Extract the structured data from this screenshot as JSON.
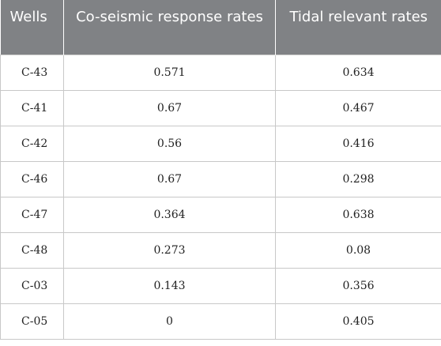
{
  "table": {
    "headers": [
      "Wells",
      "Co-seismic response rates",
      "Tidal relevant rates"
    ],
    "rows": [
      {
        "well": "C-43",
        "coseismic": "0.571",
        "tidal": "0.634"
      },
      {
        "well": "C-41",
        "coseismic": "0.67",
        "tidal": "0.467"
      },
      {
        "well": "C-42",
        "coseismic": "0.56",
        "tidal": "0.416"
      },
      {
        "well": "C-46",
        "coseismic": "0.67",
        "tidal": "0.298"
      },
      {
        "well": "C-47",
        "coseismic": "0.364",
        "tidal": "0.638"
      },
      {
        "well": "C-48",
        "coseismic": "0.273",
        "tidal": "0.08"
      },
      {
        "well": "C-03",
        "coseismic": "0.143",
        "tidal": "0.356"
      },
      {
        "well": "C-05",
        "coseismic": "0",
        "tidal": "0.405"
      }
    ]
  },
  "colors": {
    "header_bg": "#808285",
    "header_text": "#ffffff",
    "border": "#c8c8c8"
  }
}
